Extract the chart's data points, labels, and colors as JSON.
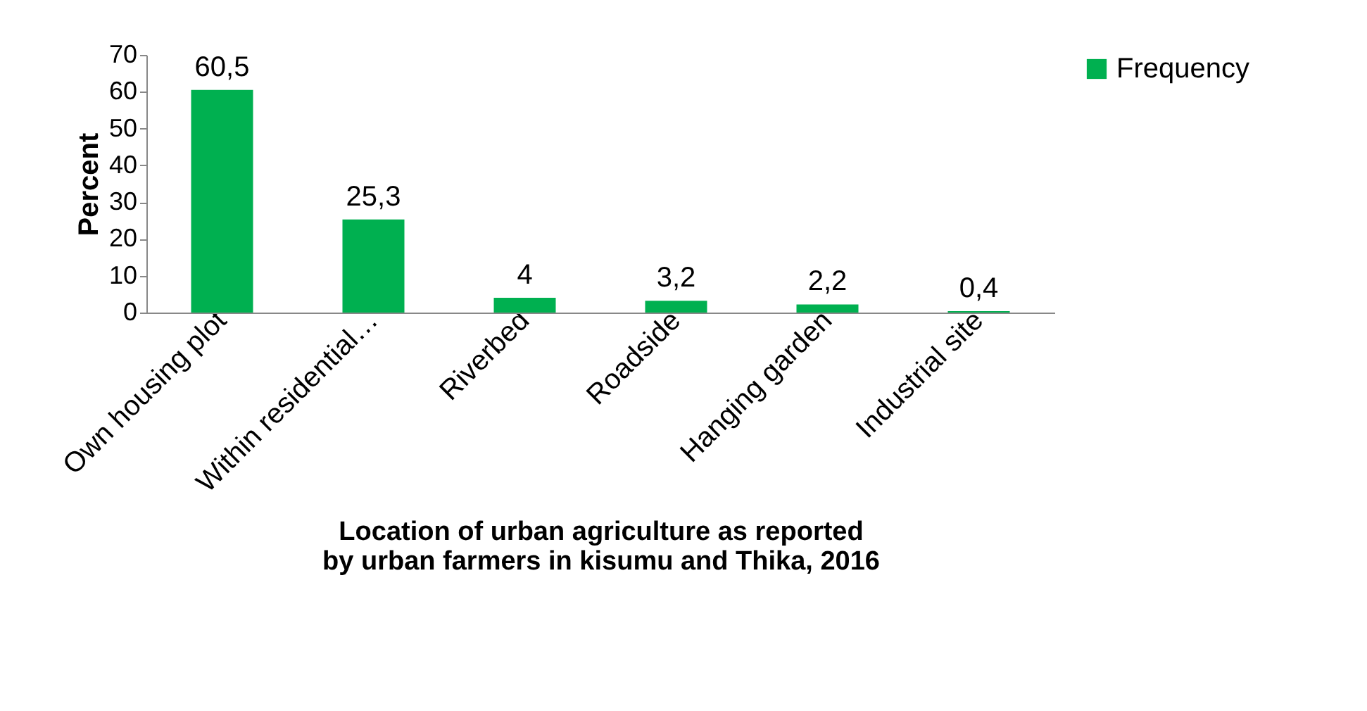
{
  "chart_data": {
    "type": "bar",
    "categories": [
      "Own housing plot",
      "Within residential…",
      "Riverbed",
      "Roadside",
      "Hanging garden",
      "Industrial site"
    ],
    "series": [
      {
        "name": "Frequency",
        "color": "#00b050",
        "values": [
          60.5,
          25.3,
          4,
          3.2,
          2.2,
          0.4
        ]
      }
    ],
    "value_labels": [
      "60,5",
      "25,3",
      "4",
      "3,2",
      "2,2",
      "0,4"
    ],
    "ylabel": "Percent",
    "xlabel": "Location of urban agriculture as reported by urban farmers in kisumu and Thika, 2016",
    "ylim": [
      0,
      70
    ],
    "yticks": [
      0,
      10,
      20,
      30,
      40,
      50,
      60,
      70
    ],
    "grid": false,
    "legend": "right"
  }
}
